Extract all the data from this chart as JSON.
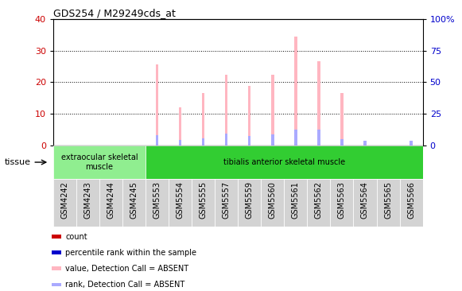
{
  "title": "GDS254 / M29249cds_at",
  "categories": [
    "GSM4242",
    "GSM4243",
    "GSM4244",
    "GSM4245",
    "GSM5553",
    "GSM5554",
    "GSM5555",
    "GSM5557",
    "GSM5559",
    "GSM5560",
    "GSM5561",
    "GSM5562",
    "GSM5563",
    "GSM5564",
    "GSM5565",
    "GSM5566"
  ],
  "pink_values": [
    0,
    0,
    0,
    0,
    25.7,
    12.0,
    16.5,
    22.3,
    18.8,
    22.3,
    34.5,
    26.7,
    16.5,
    0,
    0,
    0
  ],
  "blue_values": [
    0,
    0,
    0,
    0,
    3.2,
    1.8,
    2.2,
    3.8,
    3.0,
    3.5,
    5.0,
    5.0,
    2.0,
    1.5,
    0,
    1.5
  ],
  "ylim_left": [
    0,
    40
  ],
  "ylim_right": [
    0,
    100
  ],
  "yticks_left": [
    0,
    10,
    20,
    30,
    40
  ],
  "yticks_right": [
    0,
    25,
    50,
    75,
    100
  ],
  "yticklabels_right": [
    "0",
    "25",
    "50",
    "75",
    "100%"
  ],
  "tissue_groups": [
    {
      "label": "extraocular skeletal\nmuscle",
      "start": 0,
      "end": 4,
      "color": "#90ee90"
    },
    {
      "label": "tibialis anterior skeletal muscle",
      "start": 4,
      "end": 16,
      "color": "#32cd32"
    }
  ],
  "tissue_label": "tissue",
  "bar_width": 0.12,
  "pink_color": "#ffb6c1",
  "blue_color": "#aaaaff",
  "background_color": "#ffffff",
  "plot_bg_color": "#ffffff",
  "grid_color": "#000000",
  "left_tick_color": "#cc0000",
  "right_tick_color": "#0000cc",
  "xticklabel_bg": "#d3d3d3",
  "legend_items": [
    {
      "color": "#cc0000",
      "label": "count"
    },
    {
      "color": "#0000cc",
      "label": "percentile rank within the sample"
    },
    {
      "color": "#ffb6c1",
      "label": "value, Detection Call = ABSENT"
    },
    {
      "color": "#aaaaff",
      "label": "rank, Detection Call = ABSENT"
    }
  ]
}
